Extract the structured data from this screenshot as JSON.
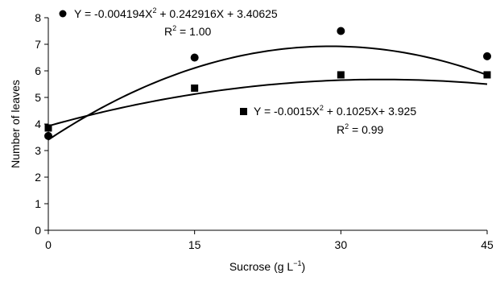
{
  "chart_data": {
    "type": "scatter",
    "xlabel": "Sucrose (g L",
    "xlabel_sup": "−1",
    "xlabel_suffix": ")",
    "ylabel": "Number of leaves",
    "xlim": [
      0,
      45
    ],
    "ylim": [
      0,
      8
    ],
    "xticks": [
      0,
      15,
      30,
      45
    ],
    "yticks": [
      0,
      1,
      2,
      3,
      4,
      5,
      6,
      7,
      8
    ],
    "grid": false,
    "series": [
      {
        "marker": "circle",
        "x": [
          0,
          15,
          30,
          45
        ],
        "y": [
          3.55,
          6.5,
          7.5,
          6.55
        ],
        "fit": {
          "a": -0.004194,
          "b": 0.242916,
          "c": 3.40625
        },
        "equation": {
          "prefix": "Y = -0.004194X",
          "sup": "2",
          "suffix": " + 0.242916X  + 3.40625"
        },
        "r2": {
          "prefix": "R",
          "sup": "2",
          "suffix": " = 1.00"
        }
      },
      {
        "marker": "square",
        "x": [
          0,
          15,
          30,
          45
        ],
        "y": [
          3.85,
          5.35,
          5.85,
          5.85
        ],
        "fit": {
          "a": -0.0015,
          "b": 0.1025,
          "c": 3.925
        },
        "equation": {
          "prefix": "Y = -0.0015X",
          "sup": "2",
          "suffix": "  + 0.1025X+  3.925"
        },
        "r2": {
          "prefix": "R",
          "sup": "2",
          "suffix": " = 0.99"
        }
      }
    ]
  }
}
